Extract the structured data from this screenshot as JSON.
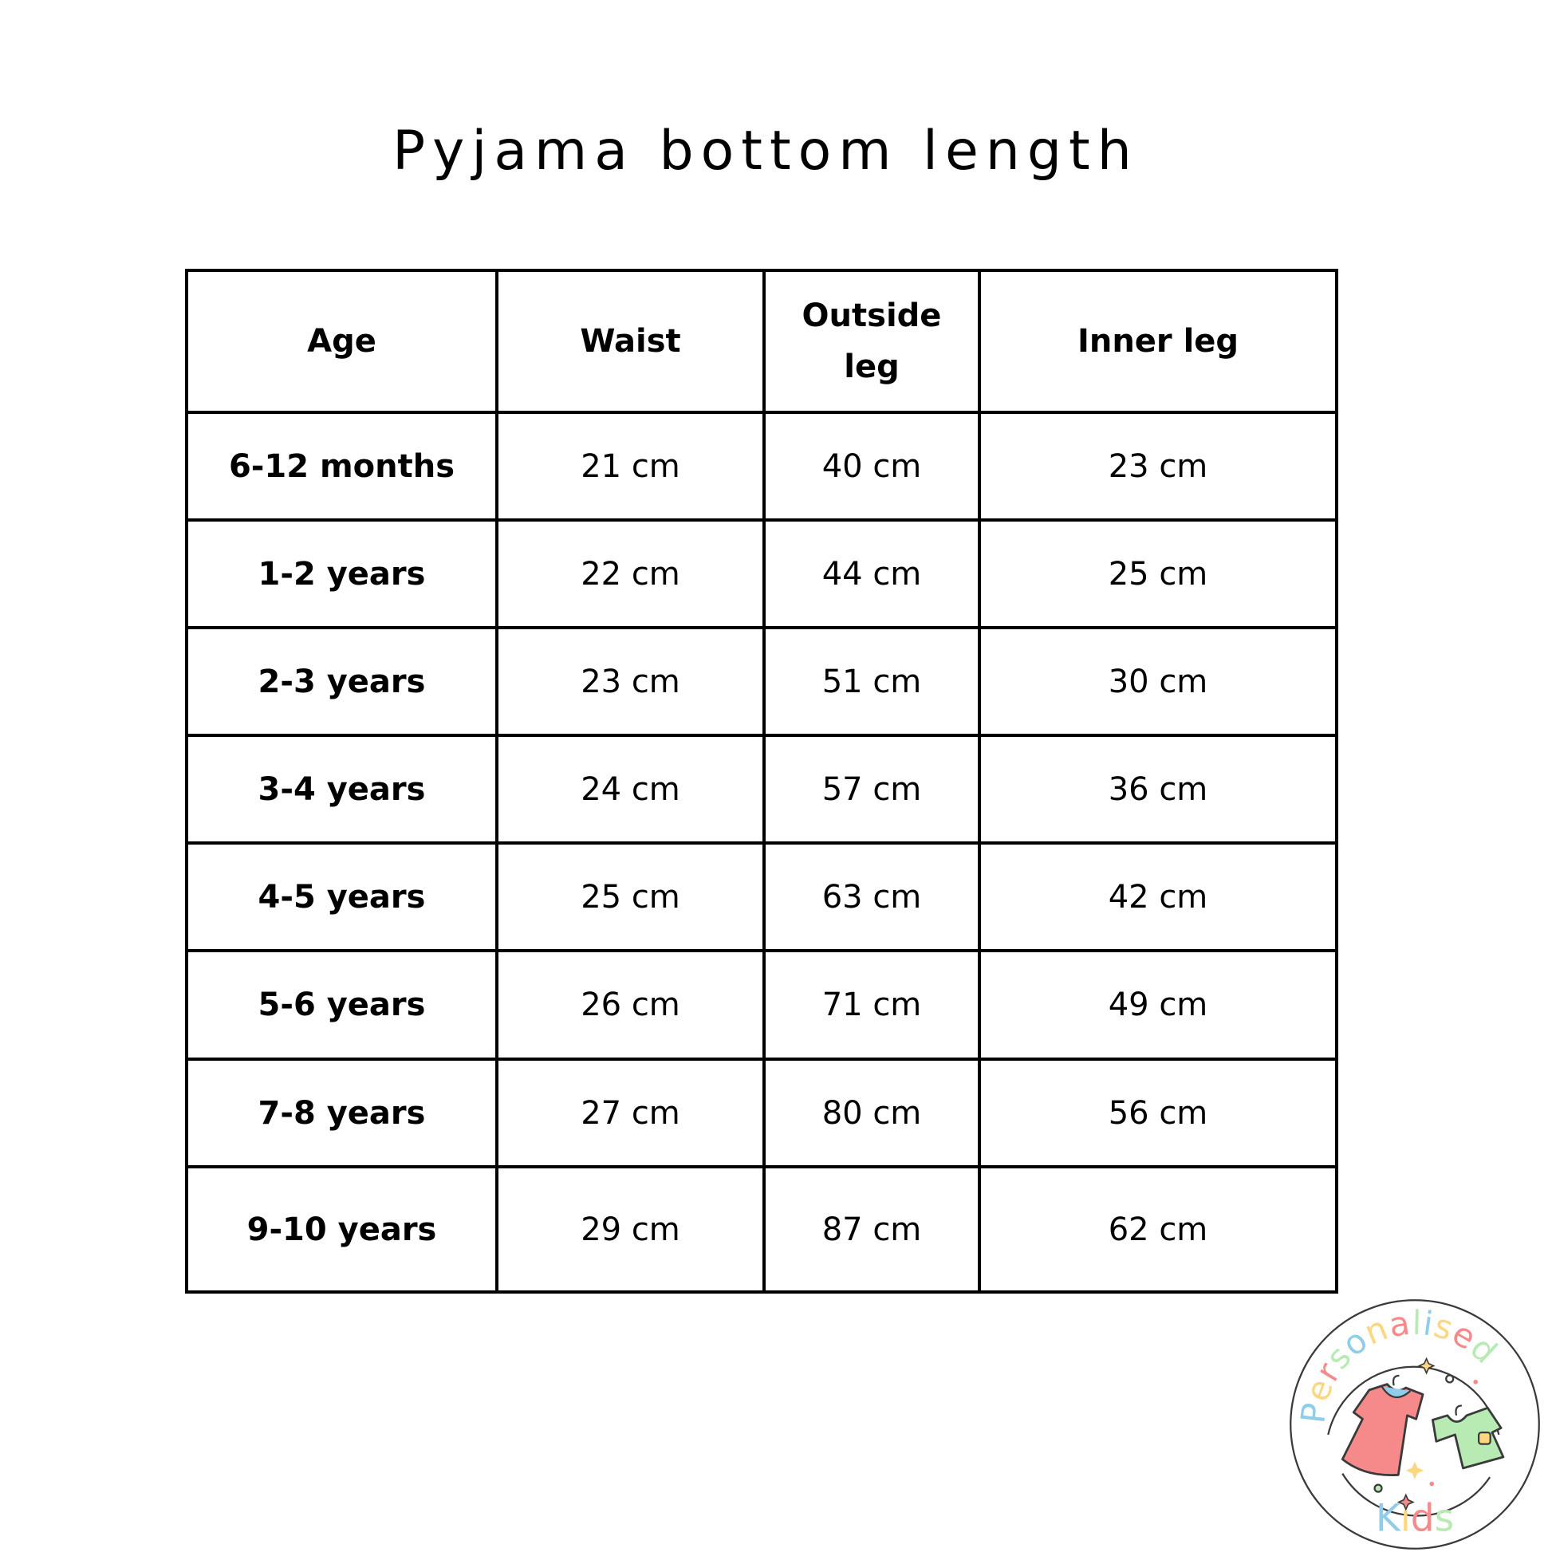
{
  "title": "Pyjama bottom length",
  "table": {
    "headers": [
      "Age",
      "Waist",
      "Outside leg",
      "Inner leg"
    ],
    "rows": [
      [
        "6-12 months",
        "21 cm",
        "40 cm",
        "23 cm"
      ],
      [
        "1-2 years",
        "22 cm",
        "44 cm",
        "25 cm"
      ],
      [
        "2-3 years",
        "23 cm",
        "51 cm",
        "30 cm"
      ],
      [
        "3-4 years",
        "24 cm",
        "57 cm",
        "36 cm"
      ],
      [
        "4-5 years",
        "25 cm",
        "63 cm",
        "42 cm"
      ],
      [
        "5-6 years",
        "26 cm",
        "71 cm",
        "49 cm"
      ],
      [
        "7-8 years",
        "27 cm",
        "80 cm",
        "56 cm"
      ],
      [
        "9-10 years",
        "29 cm",
        "87 cm",
        "62 cm"
      ]
    ]
  },
  "logo": {
    "text_top": "Personalised",
    "text_bottom": "Kids",
    "colors": [
      "#8fcdea",
      "#fcd77f",
      "#f68a8a",
      "#b7ebb3"
    ]
  }
}
